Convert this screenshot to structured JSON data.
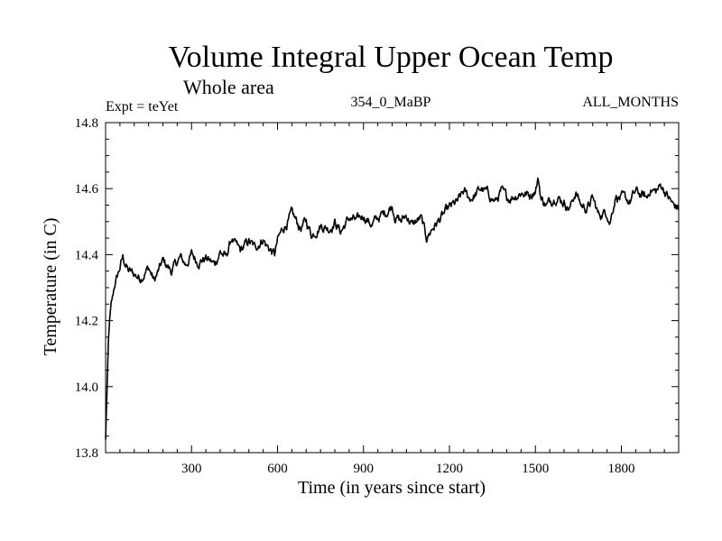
{
  "chart_data": {
    "type": "line",
    "title": "Volume Integral Upper Ocean Temp",
    "subtitle": "Whole area",
    "annotations": {
      "left": "Expt = teYet",
      "center": "354_0_MaBP",
      "right": "ALL_MONTHS"
    },
    "xlabel": "Time (in years since start)",
    "ylabel": "Temperature (in C)",
    "xlim": [
      0,
      2000
    ],
    "ylim": [
      13.8,
      14.8
    ],
    "x_ticks": [
      300,
      600,
      900,
      1200,
      1500,
      1800
    ],
    "x_tick_labels": [
      "300",
      "600",
      "900",
      "1200",
      "1500",
      "1800"
    ],
    "y_ticks": [
      13.8,
      14.0,
      14.2,
      14.4,
      14.6,
      14.8
    ],
    "y_tick_labels": [
      "13.8",
      "14.0",
      "14.2",
      "14.4",
      "14.6",
      "14.8"
    ],
    "grid": false,
    "series": [
      {
        "name": "Temperature",
        "color": "#000000",
        "x": [
          0,
          3,
          6,
          10,
          15,
          20,
          25,
          30,
          40,
          50,
          60,
          70,
          80,
          100,
          120,
          150,
          170,
          180,
          200,
          230,
          260,
          280,
          300,
          320,
          350,
          380,
          400,
          420,
          440,
          450,
          470,
          500,
          520,
          550,
          560,
          590,
          600,
          620,
          650,
          680,
          700,
          720,
          750,
          780,
          800,
          820,
          850,
          880,
          900,
          930,
          950,
          980,
          1000,
          1010,
          1030,
          1050,
          1070,
          1100,
          1120,
          1140,
          1160,
          1180,
          1200,
          1230,
          1250,
          1270,
          1290,
          1310,
          1340,
          1360,
          1380,
          1400,
          1430,
          1450,
          1480,
          1500,
          1510,
          1520,
          1540,
          1570,
          1600,
          1620,
          1640,
          1660,
          1680,
          1700,
          1720,
          1750,
          1760,
          1780,
          1800,
          1830,
          1850,
          1870,
          1890,
          1900,
          1920,
          1940,
          1960,
          1980,
          2000
        ],
        "values": [
          13.84,
          13.93,
          14.02,
          14.14,
          14.21,
          14.25,
          14.27,
          14.3,
          14.33,
          14.36,
          14.39,
          14.37,
          14.35,
          14.34,
          14.33,
          14.36,
          14.32,
          14.34,
          14.38,
          14.35,
          14.39,
          14.37,
          14.4,
          14.38,
          14.39,
          14.37,
          14.41,
          14.39,
          14.45,
          14.43,
          14.41,
          14.44,
          14.42,
          14.45,
          14.43,
          14.4,
          14.44,
          14.48,
          14.52,
          14.48,
          14.5,
          14.46,
          14.49,
          14.48,
          14.5,
          14.47,
          14.51,
          14.5,
          14.52,
          14.49,
          14.51,
          14.53,
          14.55,
          14.52,
          14.5,
          14.52,
          14.49,
          14.51,
          14.45,
          14.48,
          14.5,
          14.52,
          14.54,
          14.56,
          14.59,
          14.57,
          14.58,
          14.6,
          14.58,
          14.56,
          14.59,
          14.57,
          14.58,
          14.59,
          14.58,
          14.6,
          14.63,
          14.57,
          14.55,
          14.58,
          14.56,
          14.54,
          14.59,
          14.55,
          14.54,
          14.57,
          14.52,
          14.53,
          14.5,
          14.58,
          14.57,
          14.56,
          14.59,
          14.58,
          14.57,
          14.6,
          14.59,
          14.61,
          14.58,
          14.55,
          14.54
        ]
      }
    ]
  }
}
